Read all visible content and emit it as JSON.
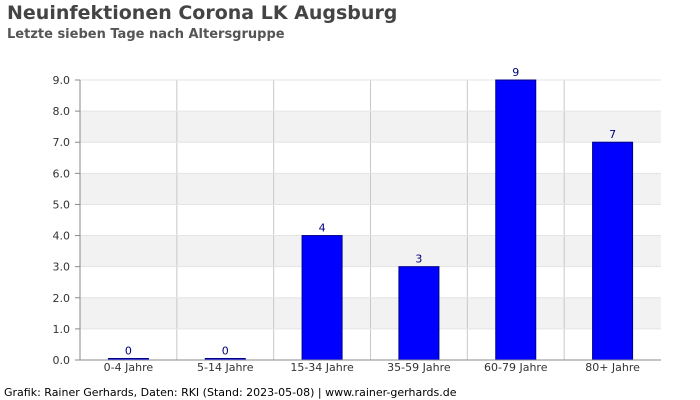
{
  "header": {
    "title": "Neuinfektionen Corona LK Augsburg",
    "subtitle": "Letzte sieben Tage nach Altersgruppe"
  },
  "footer": {
    "credit": "Grafik: Rainer Gerhards, Daten: RKI (Stand: 2023-05-08) | www.rainer-gerhards.de"
  },
  "colors": {
    "bar": "#0000ff",
    "band": "#f2f2f2"
  },
  "chart_data": {
    "type": "bar",
    "title": "Neuinfektionen Corona LK Augsburg",
    "subtitle": "Letzte sieben Tage nach Altersgruppe",
    "categories": [
      "0-4 Jahre",
      "5-14 Jahre",
      "15-34 Jahre",
      "35-59 Jahre",
      "60-79 Jahre",
      "80+ Jahre"
    ],
    "values": [
      0,
      0,
      4,
      3,
      9,
      7
    ],
    "data_labels": [
      "0",
      "0",
      "4",
      "3",
      "9",
      "7"
    ],
    "yticks": [
      "0.0",
      "1.0",
      "2.0",
      "3.0",
      "4.0",
      "5.0",
      "6.0",
      "7.0",
      "8.0",
      "9.0"
    ],
    "ylim": [
      0,
      9
    ],
    "xlabel": "",
    "ylabel": "",
    "grid": true,
    "legend": "none"
  }
}
